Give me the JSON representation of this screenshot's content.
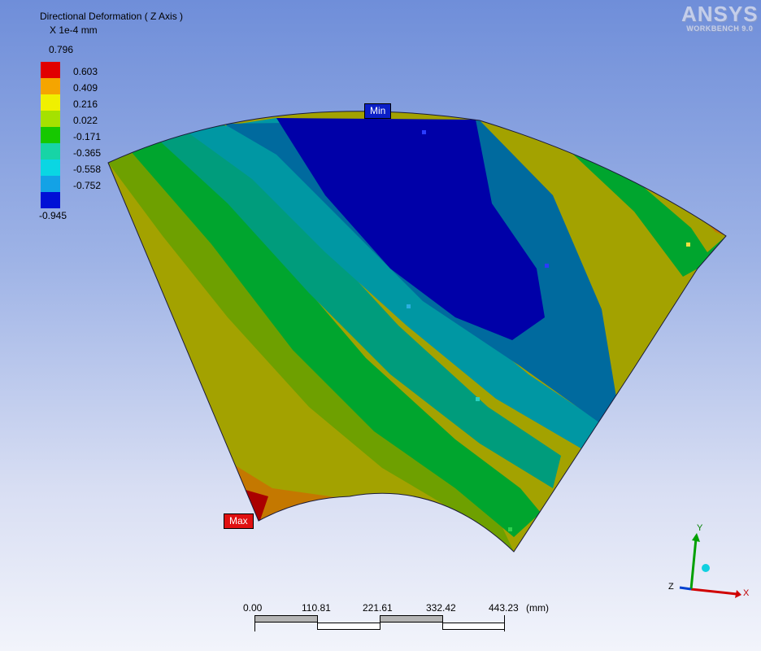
{
  "legend": {
    "title": "Directional Deformation ( Z Axis )",
    "units": "X 1e-4 mm",
    "max_value": "0.796",
    "min_value": "-0.945",
    "levels": [
      {
        "label": "0.603",
        "color": "#e10000"
      },
      {
        "label": "0.409",
        "color": "#f5a500"
      },
      {
        "label": "0.216",
        "color": "#f0f000"
      },
      {
        "label": "0.022",
        "color": "#a5e100"
      },
      {
        "label": "-0.171",
        "color": "#16c800"
      },
      {
        "label": "-0.365",
        "color": "#17d4a6"
      },
      {
        "label": "-0.558",
        "color": "#0ad6e3"
      },
      {
        "label": "-0.752",
        "color": "#13a2e6"
      },
      {
        "label": "",
        "color": "#0010d6"
      }
    ]
  },
  "logo": {
    "main": "ANSYS",
    "sub": "WORKBENCH 9.0"
  },
  "probes": {
    "min_label": "Min",
    "max_label": "Max"
  },
  "scale_bar": {
    "ticks": [
      "0.00",
      "110.81",
      "221.61",
      "332.42",
      "443.23"
    ],
    "unit": "(mm)"
  },
  "triad": {
    "x_label": "X",
    "y_label": "Y",
    "z_label": "Z"
  },
  "colors": {
    "band_red": "#aa0000",
    "band_orange": "#c47800",
    "band_olive": "#a3a200",
    "band_green": "#6ea000",
    "band_green2": "#00a52e",
    "band_teal": "#009c7c",
    "band_cyan": "#0097a3",
    "band_steel": "#006a9e",
    "band_blue": "#0000a8"
  }
}
